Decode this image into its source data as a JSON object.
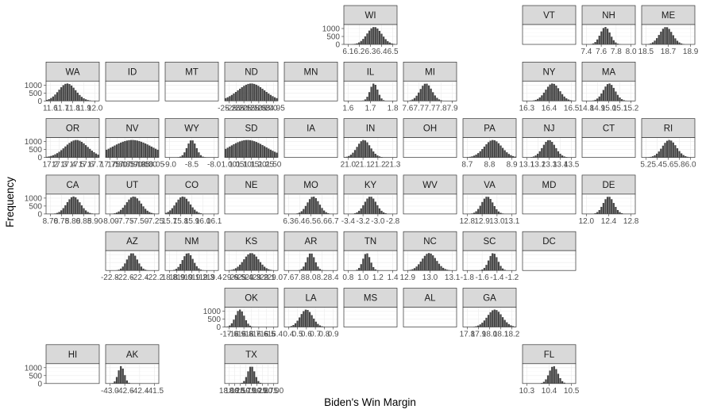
{
  "chart_data": {
    "type": "bar",
    "layout": "state-grid faceted histograms",
    "xlabel": "Biden's Win Margin",
    "ylabel": "Frequency",
    "y_ticks": [
      "0",
      "500",
      "1000"
    ],
    "ylim": [
      0,
      1250
    ],
    "colors": {
      "bars": "#464646",
      "strip": "#d9d9d9",
      "grid": "#ebebeb"
    },
    "panels": [
      {
        "state": "WI",
        "row": 0,
        "col": 5,
        "mean": 6.33,
        "sd": 0.055,
        "x_ticks": [
          "6.1",
          "6.2",
          "6.3",
          "6.4",
          "6.5"
        ],
        "xlim": [
          6.1,
          6.5
        ],
        "show_y": true
      },
      {
        "state": "VT",
        "row": 0,
        "col": 8,
        "empty": true
      },
      {
        "state": "NH",
        "row": 0,
        "col": 9,
        "mean": 7.65,
        "sd": 0.075,
        "x_ticks": [
          "7.4",
          "7.6",
          "7.8",
          "8.0"
        ],
        "xlim": [
          7.3,
          8.1
        ]
      },
      {
        "state": "ME",
        "row": 0,
        "col": 10,
        "mean": 18.68,
        "sd": 0.06,
        "x_ticks": [
          "18.5",
          "18.7",
          "18.9"
        ],
        "xlim": [
          18.45,
          18.95
        ]
      },
      {
        "state": "WA",
        "row": 1,
        "col": 0,
        "mean": 11.7,
        "sd": 0.08,
        "x_ticks": [
          "11.6",
          "11.7",
          "11.8",
          "11.9",
          "12.0"
        ],
        "xlim": [
          11.5,
          12.0
        ],
        "show_y": true
      },
      {
        "state": "ID",
        "row": 1,
        "col": 1,
        "empty": true
      },
      {
        "state": "MT",
        "row": 1,
        "col": 2,
        "empty": true
      },
      {
        "state": "ND",
        "row": 1,
        "col": 3,
        "mean": -25.1,
        "sd": 0.1,
        "x_ticks": [
          "-25.25",
          "-25.20",
          "-25.15",
          "-25.10",
          "-25.05",
          "-25.00",
          "-24.95"
        ],
        "xlim": [
          -25.3,
          -24.9
        ]
      },
      {
        "state": "MN",
        "row": 1,
        "col": 4,
        "empty": true
      },
      {
        "state": "IL",
        "row": 1,
        "col": 5,
        "mean": 1.72,
        "sd": 0.022,
        "x_ticks": [
          "1.6",
          "1.7",
          "1.8"
        ],
        "xlim": [
          1.55,
          1.85
        ]
      },
      {
        "state": "MI",
        "row": 1,
        "col": 6,
        "mean": 7.72,
        "sd": 0.045,
        "x_ticks": [
          "7.6",
          "7.7",
          "7.7",
          "7.8",
          "7.9"
        ],
        "xlim": [
          7.55,
          7.95
        ]
      },
      {
        "state": "NY",
        "row": 1,
        "col": 8,
        "mean": 16.42,
        "sd": 0.04,
        "x_ticks": [
          "16.3",
          "16.4",
          "16.5"
        ],
        "xlim": [
          16.25,
          16.55
        ]
      },
      {
        "state": "MA",
        "row": 1,
        "col": 9,
        "mean": 14.98,
        "sd": 0.05,
        "x_ticks": [
          "14.8",
          "14.9",
          "15.0",
          "15.1",
          "15.2"
        ],
        "xlim": [
          14.75,
          15.2
        ]
      },
      {
        "state": "OR",
        "row": 2,
        "col": 0,
        "mean": 17.5,
        "sd": 0.15,
        "x_ticks": [
          "17.2",
          "17.3",
          "17.4",
          "17.5",
          "17.6",
          "17.7"
        ],
        "xlim": [
          17.1,
          17.8
        ],
        "show_y": true
      },
      {
        "state": "NV",
        "row": 2,
        "col": 1,
        "mean": 17.9,
        "sd": 0.15,
        "x_ticks": [
          "17.75",
          "17.80",
          "17.85",
          "17.90",
          "17.95",
          "18.00",
          "18.05"
        ],
        "xlim": [
          17.7,
          18.1
        ]
      },
      {
        "state": "WY",
        "row": 2,
        "col": 2,
        "mean": -8.5,
        "sd": 0.12,
        "x_ticks": [
          "-9.0",
          "-8.5",
          "-8.0"
        ],
        "xlim": [
          -9.2,
          -7.8
        ]
      },
      {
        "state": "SD",
        "row": 2,
        "col": 3,
        "mean": 1.1,
        "sd": 0.12,
        "x_ticks": [
          "1.00",
          "1.05",
          "1.10",
          "1.15",
          "1.20",
          "1.25",
          "1.50"
        ],
        "xlim": [
          0.95,
          1.3
        ]
      },
      {
        "state": "IA",
        "row": 2,
        "col": 4,
        "empty": true
      },
      {
        "state": "IN",
        "row": 2,
        "col": 5,
        "mean": 21.1,
        "sd": 0.05,
        "x_ticks": [
          "21.0",
          "21.1",
          "21.2",
          "21.3"
        ],
        "xlim": [
          20.95,
          21.35
        ]
      },
      {
        "state": "OH",
        "row": 2,
        "col": 6,
        "empty": true
      },
      {
        "state": "PA",
        "row": 2,
        "col": 7,
        "mean": 8.82,
        "sd": 0.05,
        "x_ticks": [
          "8.7",
          "8.8",
          "8.9"
        ],
        "xlim": [
          8.65,
          8.95
        ]
      },
      {
        "state": "NJ",
        "row": 2,
        "col": 8,
        "mean": 13.3,
        "sd": 0.06,
        "x_ticks": [
          "13.1",
          "13.2",
          "13.3",
          "13.4",
          "13.5"
        ],
        "xlim": [
          13.05,
          13.55
        ]
      },
      {
        "state": "CT",
        "row": 2,
        "col": 9,
        "empty": true
      },
      {
        "state": "RI",
        "row": 2,
        "col": 10,
        "mean": 5.62,
        "sd": 0.12,
        "x_ticks": [
          "5.2",
          "5.4",
          "5.6",
          "5.8",
          "6.0"
        ],
        "xlim": [
          5.15,
          6.05
        ]
      },
      {
        "state": "CA",
        "row": 3,
        "col": 0,
        "mean": 8.82,
        "sd": 0.035,
        "x_ticks": [
          "8.70",
          "8.75",
          "8.80",
          "8.85",
          "8.90"
        ],
        "xlim": [
          8.68,
          8.95
        ],
        "show_y": true
      },
      {
        "state": "UT",
        "row": 3,
        "col": 1,
        "mean": -7.6,
        "sd": 0.12,
        "x_ticks": [
          "-8.00",
          "-7.75",
          "-7.50",
          "-7.25"
        ],
        "xlim": [
          -8.05,
          -7.2
        ]
      },
      {
        "state": "CO",
        "row": 3,
        "col": 2,
        "mean": 15.8,
        "sd": 0.06,
        "x_ticks": [
          "15.7",
          "15.8",
          "15.9",
          "16.0",
          "16.1"
        ],
        "xlim": [
          15.65,
          16.1
        ]
      },
      {
        "state": "NE",
        "row": 3,
        "col": 3,
        "empty": true
      },
      {
        "state": "MO",
        "row": 3,
        "col": 4,
        "mean": 6.52,
        "sd": 0.05,
        "x_ticks": [
          "6.3",
          "6.4",
          "6.5",
          "6.6",
          "6.7"
        ],
        "xlim": [
          6.28,
          6.72
        ]
      },
      {
        "state": "KY",
        "row": 3,
        "col": 5,
        "mean": -3.1,
        "sd": 0.08,
        "x_ticks": [
          "-3.4",
          "-3.2",
          "-3.0",
          "-2.8"
        ],
        "xlim": [
          -3.45,
          -2.75
        ]
      },
      {
        "state": "WV",
        "row": 3,
        "col": 6,
        "empty": true
      },
      {
        "state": "VA",
        "row": 3,
        "col": 7,
        "mean": 12.95,
        "sd": 0.04,
        "x_ticks": [
          "12.8",
          "12.9",
          "13.0",
          "13.1"
        ],
        "xlim": [
          12.78,
          13.15
        ]
      },
      {
        "state": "MD",
        "row": 3,
        "col": 8,
        "empty": true
      },
      {
        "state": "DE",
        "row": 3,
        "col": 9,
        "mean": 12.4,
        "sd": 0.09,
        "x_ticks": [
          "12.0",
          "12.4",
          "12.8"
        ],
        "xlim": [
          11.95,
          12.85
        ]
      },
      {
        "state": "AZ",
        "row": 4,
        "col": 1,
        "mean": -22.5,
        "sd": 0.07,
        "x_ticks": [
          "-22.8",
          "-22.6",
          "-22.4",
          "-22.2"
        ],
        "xlim": [
          -22.85,
          -22.15
        ]
      },
      {
        "state": "NM",
        "row": 4,
        "col": 2,
        "mean": 19.05,
        "sd": 0.07,
        "x_ticks": [
          "18.8",
          "18.9",
          "19.0",
          "19.1",
          "19.2",
          "19.3",
          "19.4"
        ],
        "xlim": [
          18.75,
          19.45
        ]
      },
      {
        "state": "KS",
        "row": 4,
        "col": 3,
        "mean": -29.3,
        "sd": 0.1,
        "x_ticks": [
          "-29.6",
          "-29.5",
          "-29.4",
          "-29.3",
          "-29.2",
          "-29.1",
          "-29.0"
        ],
        "xlim": [
          -29.65,
          -28.95
        ]
      },
      {
        "state": "AR",
        "row": 4,
        "col": 4,
        "mean": 8.0,
        "sd": 0.07,
        "x_ticks": [
          "7.6",
          "7.8",
          "8.0",
          "8.2",
          "8.4"
        ],
        "xlim": [
          7.55,
          8.45
        ]
      },
      {
        "state": "TN",
        "row": 4,
        "col": 5,
        "mean": 1.05,
        "sd": 0.05,
        "x_ticks": [
          "0.8",
          "1.0",
          "1.2",
          "1.4"
        ],
        "xlim": [
          0.75,
          1.45
        ]
      },
      {
        "state": "NC",
        "row": 4,
        "col": 6,
        "mean": 12.98,
        "sd": 0.045,
        "x_ticks": [
          "12.9",
          "13.0",
          "13.1"
        ],
        "xlim": [
          12.82,
          13.15
        ]
      },
      {
        "state": "SC",
        "row": 4,
        "col": 7,
        "mean": -1.45,
        "sd": 0.06,
        "x_ticks": [
          "-1.8",
          "-1.6",
          "-1.4",
          "-1.2"
        ],
        "xlim": [
          -1.85,
          -1.15
        ]
      },
      {
        "state": "DC",
        "row": 4,
        "col": 8,
        "empty": true
      },
      {
        "state": "OK",
        "row": 5,
        "col": 3,
        "mean": -16.85,
        "sd": 0.06,
        "x_ticks": [
          "-17.0",
          "-16.9",
          "-16.8",
          "-16.7",
          "-16.6",
          "-16.5",
          "-16.4"
        ],
        "xlim": [
          -17.05,
          -16.35
        ],
        "show_y": true
      },
      {
        "state": "LA",
        "row": 5,
        "col": 4,
        "mean": 0.6,
        "sd": 0.07,
        "x_ticks": [
          "0.4",
          "0.5",
          "0.6",
          "0.7",
          "0.8",
          "0.9"
        ],
        "xlim": [
          0.35,
          0.95
        ]
      },
      {
        "state": "MS",
        "row": 5,
        "col": 5,
        "empty": true
      },
      {
        "state": "AL",
        "row": 5,
        "col": 6,
        "empty": true
      },
      {
        "state": "GA",
        "row": 5,
        "col": 7,
        "mean": 18.05,
        "sd": 0.07,
        "x_ticks": [
          "17.8",
          "17.9",
          "18.0",
          "18.1",
          "18.2"
        ],
        "xlim": [
          17.75,
          18.25
        ]
      },
      {
        "state": "HI",
        "row": 6,
        "col": 0,
        "empty": true,
        "show_y": true
      },
      {
        "state": "AK",
        "row": 6,
        "col": 1,
        "mean": -42.6,
        "sd": 0.1,
        "x_ticks": [
          "-43.0",
          "-42.6",
          "-42.4",
          "-41.5"
        ],
        "xlim": [
          -43.1,
          -41.4
        ]
      },
      {
        "state": "TX",
        "row": 6,
        "col": 3,
        "mean": 19.0,
        "sd": 0.15,
        "x_ticks": [
          "18.00",
          "18.25",
          "18.50",
          "18.75",
          "19.00",
          "19.25",
          "19.50",
          "19.75",
          "20.00"
        ],
        "xlim": [
          17.9,
          20.1
        ]
      },
      {
        "state": "FL",
        "row": 6,
        "col": 8,
        "mean": 10.42,
        "sd": 0.02,
        "x_ticks": [
          "10.3",
          "10.4",
          "10.5"
        ],
        "xlim": [
          10.28,
          10.52
        ]
      }
    ]
  }
}
